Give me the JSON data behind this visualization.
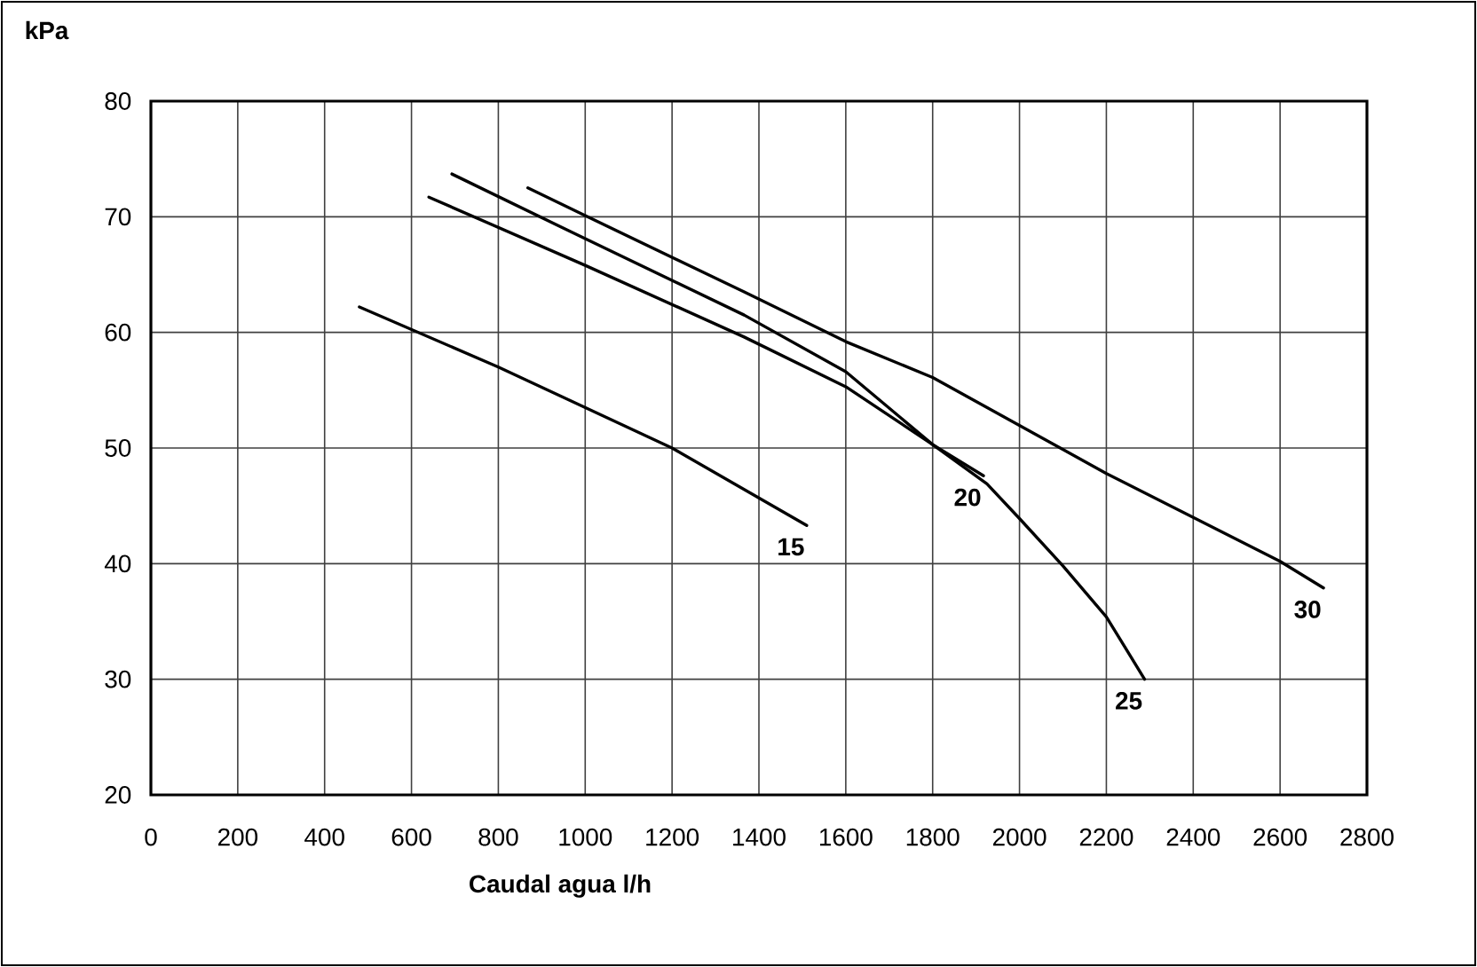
{
  "chart_data": {
    "type": "line",
    "xlabel": "Caudal agua l/h",
    "ylabel": "kPa",
    "xlim": [
      0,
      2800
    ],
    "xticks": [
      0,
      200,
      400,
      600,
      800,
      1000,
      1200,
      1400,
      1600,
      1800,
      2000,
      2200,
      2400,
      2600,
      2800
    ],
    "ylim": [
      20,
      80
    ],
    "yticks": [
      20,
      30,
      40,
      50,
      60,
      70,
      80
    ],
    "grid": true,
    "legend": false,
    "marker": "none",
    "line_style": "solid",
    "series": [
      {
        "name": "15",
        "color": "#000000",
        "x": [
          480,
          800,
          1200,
          1510
        ],
        "values": [
          62.2,
          57.0,
          50.0,
          43.3
        ]
      },
      {
        "name": "20",
        "color": "#000000",
        "x": [
          640,
          1000,
          1366,
          1600,
          1800,
          1917
        ],
        "values": [
          71.7,
          65.8,
          59.6,
          55.3,
          50.3,
          47.6
        ]
      },
      {
        "name": "25",
        "color": "#000000",
        "x": [
          693,
          1000,
          1366,
          1600,
          1800,
          1925,
          2000,
          2100,
          2200,
          2288
        ],
        "values": [
          73.7,
          68.1,
          61.5,
          56.6,
          50.3,
          46.9,
          43.9,
          39.8,
          35.4,
          30.0
        ]
      },
      {
        "name": "30",
        "color": "#000000",
        "x": [
          868,
          1000,
          1366,
          1600,
          1800,
          2200,
          2600,
          2700
        ],
        "values": [
          72.5,
          70.1,
          63.5,
          59.2,
          56.1,
          47.8,
          40.2,
          37.9
        ]
      }
    ]
  }
}
